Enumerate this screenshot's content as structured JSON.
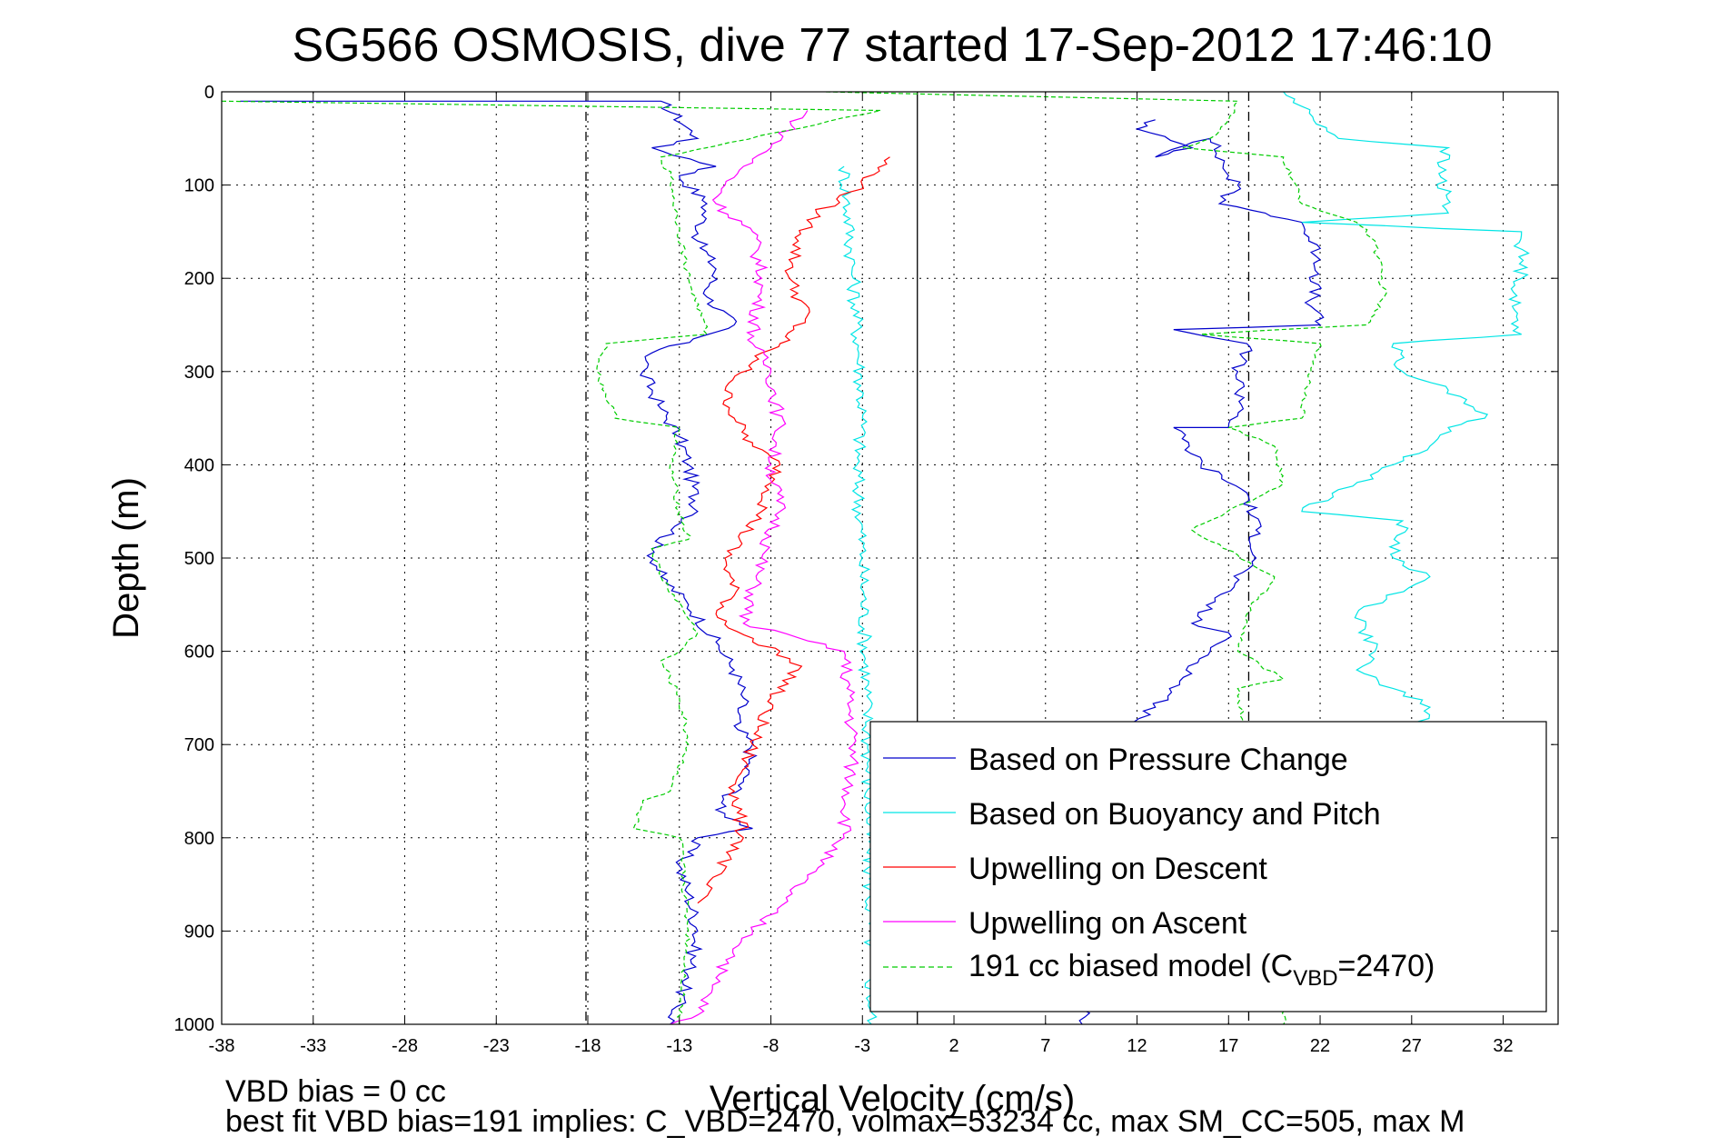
{
  "chart_data": {
    "type": "line",
    "title": "SG566 OSMOSIS, dive 77 started 17-Sep-2012 17:46:10",
    "xlabel": "Vertical Velocity (cm/s)",
    "ylabel": "Depth (m)",
    "xlim": [
      -38,
      35
    ],
    "ylim": [
      0,
      1000
    ],
    "y_reversed": true,
    "grid": true,
    "legend_position": "bottom-right",
    "x_ticks": [
      "-38",
      "-33",
      "-28",
      "-23",
      "-18",
      "-13",
      "-8",
      "-3",
      "2",
      "7",
      "12",
      "17",
      "22",
      "27",
      "32"
    ],
    "x_tick_values": [
      -38,
      -33,
      -28,
      -23,
      -18,
      -13,
      -8,
      -3,
      2,
      7,
      12,
      17,
      22,
      27,
      32
    ],
    "y_ticks": [
      "0",
      "100",
      "200",
      "300",
      "400",
      "500",
      "600",
      "700",
      "800",
      "900",
      "1000"
    ],
    "y_tick_values": [
      0,
      100,
      200,
      300,
      400,
      500,
      600,
      700,
      800,
      900,
      1000
    ],
    "vlines": [
      {
        "x": -18.1,
        "style": "dashed",
        "color": "#000000"
      },
      {
        "x": 0,
        "style": "solid",
        "color": "#000000"
      },
      {
        "x": 18.1,
        "style": "dashed",
        "color": "#000000"
      }
    ],
    "series": [
      {
        "name": "Based on Pressure Change",
        "color": "#0000cc",
        "style": "solid",
        "segments": [
          {
            "x": [
              -37,
              -14,
              -12,
              -14.5,
              -11,
              -13,
              -11.5,
              -12,
              -11,
              -11.5,
              -10,
              -14.5,
              -15,
              -14,
              -13,
              -12.5,
              -12,
              -14.5,
              -14,
              -12.5,
              -11,
              -10,
              -9.5,
              -10,
              -9,
              -9.5,
              -11,
              -9,
              -12,
              -13,
              -12.5,
              -12,
              -12.5,
              -13.5
            ],
            "y": [
              10,
              10,
              50,
              60,
              80,
              90,
              120,
              160,
              190,
              220,
              250,
              280,
              300,
              340,
              370,
              400,
              450,
              490,
              520,
              550,
              590,
              620,
              650,
              680,
              700,
              740,
              770,
              790,
              800,
              830,
              860,
              900,
              950,
              1000
            ]
          },
          {
            "x": [
              13,
              12,
              15,
              13,
              16,
              17,
              17.5,
              16.5,
              19,
              21,
              22,
              21.5,
              22,
              14,
              18,
              17.5,
              17.8,
              17,
              14,
              15.5,
              18,
              18.5,
              18.5,
              15,
              17,
              16,
              13,
              10.5,
              9.5,
              9
            ],
            "y": [
              30,
              40,
              60,
              70,
              50,
              90,
              100,
              120,
              130,
              140,
              180,
              230,
              250,
              255,
              270,
              300,
              340,
              360,
              360,
              400,
              430,
              470,
              500,
              570,
              580,
              600,
              660,
              700,
              800,
              1000
            ]
          }
        ]
      },
      {
        "name": "Based on Buoyancy and Pitch",
        "color": "#00e5e5",
        "style": "solid",
        "segments": [
          {
            "x": [
              -4,
              -3.5,
              -3.2,
              -3.0,
              -3.3,
              -3.0,
              -2.7,
              -2.5
            ],
            "y": [
              80,
              200,
              280,
              350,
              400,
              500,
              700,
              1000
            ]
          },
          {
            "x": [
              20,
              23,
              29,
              28.5,
              29,
              21,
              33,
              33,
              32.5,
              33,
              26,
              26.5,
              29,
              30,
              31,
              29,
              28,
              21,
              26.5,
              26,
              28,
              24,
              25,
              24,
              26,
              28,
              27
            ],
            "y": [
              0,
              50,
              60,
              80,
              130,
              140,
              150,
              200,
              230,
              260,
              270,
              300,
              320,
              330,
              350,
              360,
              380,
              450,
              460,
              500,
              520,
              560,
              600,
              620,
              640,
              660,
              700
            ]
          }
        ]
      },
      {
        "name": "Upwelling on Descent",
        "color": "#ff0000",
        "style": "solid",
        "segments": [
          {
            "x": [
              -1.5,
              -3.0,
              -5.5,
              -6.5,
              -7.0,
              -6.0,
              -7.5,
              -8.5,
              -9.0,
              -10.5,
              -10,
              -9.0,
              -7.5,
              -8.5,
              -10.5,
              -10.0,
              -11.0,
              -9.0,
              -7.5,
              -6.5,
              -8.0,
              -9.0,
              -10.0,
              -9.5,
              -11.5,
              -12.0
            ],
            "y": [
              70,
              100,
              130,
              160,
              200,
              240,
              270,
              280,
              290,
              320,
              350,
              380,
              400,
              450,
              500,
              540,
              560,
              590,
              600,
              620,
              650,
              700,
              750,
              800,
              850,
              870
            ]
          }
        ]
      },
      {
        "name": "Upwelling on Ascent",
        "color": "#ff00ff",
        "style": "solid",
        "segments": [
          {
            "x": [
              -6,
              -8,
              -9.5,
              -10.5,
              -11,
              -9,
              -8.5,
              -9,
              -8,
              -7.5,
              -8,
              -7.5,
              -8.5,
              -9.5,
              -4,
              -3.5,
              -4,
              -6,
              -9,
              -11,
              -12,
              -13.5
            ],
            "y": [
              20,
              60,
              80,
              100,
              120,
              150,
              200,
              270,
              300,
              360,
              400,
              450,
              500,
              570,
              600,
              700,
              800,
              840,
              900,
              950,
              990,
              1000
            ]
          }
        ]
      },
      {
        "name": "191 cc biased model (C",
        "color": "#00cc00",
        "style": "dashed",
        "segments": [
          {
            "x": [
              -38,
              -2,
              -14,
              -13.5,
              -13,
              -12.5,
              -11.5,
              -17,
              -17.5,
              -16.5,
              -13,
              -13.5,
              -13,
              -12.5,
              -14.5,
              -14,
              -12,
              -13,
              -14,
              -13,
              -12.5,
              -13.5,
              -15,
              -15.5,
              -13,
              -12.5,
              -13
            ],
            "y": [
              10,
              20,
              70,
              90,
              150,
              200,
              260,
              270,
              300,
              350,
              360,
              400,
              450,
              480,
              490,
              520,
              580,
              600,
              610,
              650,
              700,
              750,
              760,
              790,
              800,
              900,
              1000
            ]
          },
          {
            "x": [
              -5,
              17.5,
              17,
              16,
              14.5,
              20,
              21,
              24,
              25,
              25.5,
              24.5,
              15.5,
              22,
              21.5,
              21,
              17,
              19.5,
              20,
              15,
              19.5,
              18,
              17.5,
              20,
              17.5,
              18,
              19.5,
              20
            ],
            "y": [
              0,
              10,
              30,
              50,
              60,
              70,
              120,
              140,
              160,
              220,
              250,
              260,
              270,
              300,
              350,
              360,
              380,
              420,
              470,
              520,
              560,
              600,
              630,
              640,
              700,
              800,
              1000
            ]
          }
        ]
      }
    ],
    "legend_subscript": "VBD",
    "legend_suffix": "=2470)",
    "footnotes": [
      "VBD bias = 0 cc",
      "best fit VBD bias=191 implies: C_VBD=2470, volmax=53234 cc, max SM_CC=505, max M"
    ]
  }
}
